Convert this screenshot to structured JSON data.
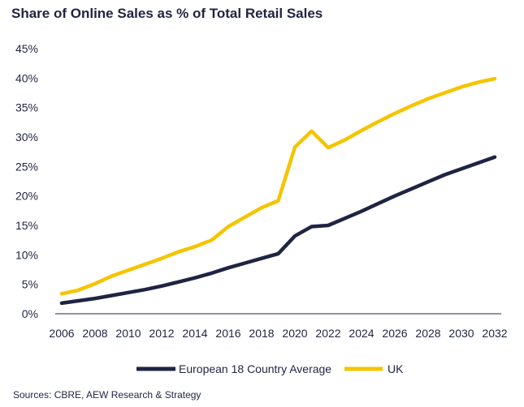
{
  "chart_data": {
    "type": "line",
    "title": "Share of Online Sales as % of Total Retail Sales",
    "source": "Sources: CBRE, AEW Research & Strategy",
    "x": [
      2006,
      2007,
      2008,
      2009,
      2010,
      2011,
      2012,
      2013,
      2014,
      2015,
      2016,
      2017,
      2018,
      2019,
      2020,
      2021,
      2022,
      2023,
      2024,
      2025,
      2026,
      2027,
      2028,
      2029,
      2030,
      2031,
      2032
    ],
    "x_ticks": [
      "2006",
      "2008",
      "2010",
      "2012",
      "2014",
      "2016",
      "2018",
      "2020",
      "2022",
      "2024",
      "2026",
      "2028",
      "2030",
      "2032"
    ],
    "y_ticks": [
      "0%",
      "5%",
      "10%",
      "15%",
      "20%",
      "25%",
      "30%",
      "35%",
      "40%",
      "45%"
    ],
    "ylim": [
      0,
      45
    ],
    "grid": false,
    "legend_placement": "bottom",
    "series": [
      {
        "name": "European 18 Country Average",
        "color": "#1f2442",
        "values": [
          1.8,
          2.2,
          2.6,
          3.1,
          3.6,
          4.1,
          4.7,
          5.4,
          6.1,
          6.9,
          7.8,
          8.6,
          9.4,
          10.2,
          13.2,
          14.8,
          15.0,
          16.2,
          17.4,
          18.7,
          20.0,
          21.2,
          22.4,
          23.6,
          24.6,
          25.6,
          26.6
        ]
      },
      {
        "name": "UK",
        "color": "#f5c400",
        "values": [
          3.4,
          4.0,
          5.1,
          6.4,
          7.4,
          8.4,
          9.4,
          10.5,
          11.4,
          12.5,
          14.8,
          16.4,
          18.0,
          19.2,
          28.3,
          31.0,
          28.2,
          29.5,
          31.1,
          32.6,
          34.0,
          35.3,
          36.5,
          37.5,
          38.5,
          39.3,
          39.9
        ]
      }
    ]
  }
}
